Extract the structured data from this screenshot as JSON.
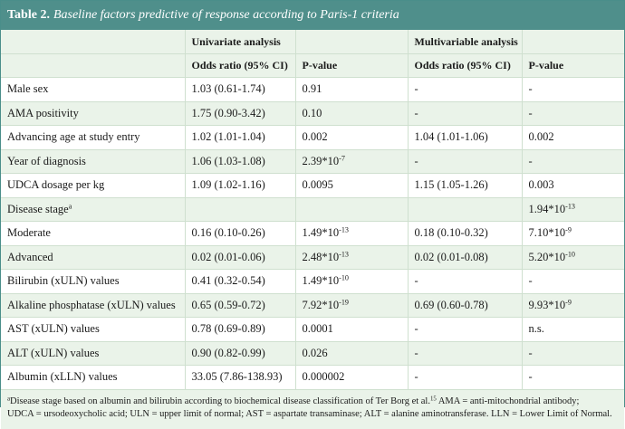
{
  "title": {
    "label": "Table 2.",
    "caption": "Baseline factors predictive of response according to Paris-1 criteria"
  },
  "group_headers": [
    "",
    "Univariate analysis",
    "",
    "Multivariable analysis",
    ""
  ],
  "sub_headers": [
    "",
    "Odds ratio (95% CI)",
    "P-value",
    "Odds ratio (95% CI)",
    "P-value"
  ],
  "rows": [
    {
      "factor": "Male sex",
      "uni_or": "1.03 (0.61-1.74)",
      "uni_p": "0.91",
      "uni_p_exp": "",
      "multi_or": "-",
      "multi_p": "-",
      "multi_p_exp": ""
    },
    {
      "factor": "AMA positivity",
      "uni_or": "1.75 (0.90-3.42)",
      "uni_p": "0.10",
      "uni_p_exp": "",
      "multi_or": "-",
      "multi_p": "-",
      "multi_p_exp": ""
    },
    {
      "factor": "Advancing age at study entry",
      "uni_or": "1.02 (1.01-1.04)",
      "uni_p": "0.002",
      "uni_p_exp": "",
      "multi_or": "1.04 (1.01-1.06)",
      "multi_p": "0.002",
      "multi_p_exp": ""
    },
    {
      "factor": "Year of diagnosis",
      "uni_or": "1.06 (1.03-1.08)",
      "uni_p": "2.39*10",
      "uni_p_exp": "-7",
      "multi_or": "-",
      "multi_p": "-",
      "multi_p_exp": ""
    },
    {
      "factor": "UDCA dosage per kg",
      "uni_or": "1.09 (1.02-1.16)",
      "uni_p": "0.0095",
      "uni_p_exp": "",
      "multi_or": "1.15 (1.05-1.26)",
      "multi_p": "0.003",
      "multi_p_exp": ""
    },
    {
      "factor": "Disease stage",
      "factor_sup": "a",
      "uni_or": "",
      "uni_p": "",
      "uni_p_exp": "",
      "multi_or": "",
      "multi_p": "1.94*10",
      "multi_p_exp": "-13"
    },
    {
      "factor": "Moderate",
      "uni_or": "0.16 (0.10-0.26)",
      "uni_p": "1.49*10",
      "uni_p_exp": "-13",
      "multi_or": "0.18 (0.10-0.32)",
      "multi_p": "7.10*10",
      "multi_p_exp": "-9"
    },
    {
      "factor": "Advanced",
      "uni_or": "0.02 (0.01-0.06)",
      "uni_p": "2.48*10",
      "uni_p_exp": "-13",
      "multi_or": "0.02 (0.01-0.08)",
      "multi_p": "5.20*10",
      "multi_p_exp": "-10"
    },
    {
      "factor": "Bilirubin (xULN) values",
      "uni_or": "0.41 (0.32-0.54)",
      "uni_p": "1.49*10",
      "uni_p_exp": "-10",
      "multi_or": "-",
      "multi_p": "-",
      "multi_p_exp": ""
    },
    {
      "factor": "Alkaline phosphatase (xULN) values",
      "uni_or": "0.65 (0.59-0.72)",
      "uni_p": "7.92*10",
      "uni_p_exp": "-19",
      "multi_or": "0.69 (0.60-0.78)",
      "multi_p": "9.93*10",
      "multi_p_exp": "-9"
    },
    {
      "factor": "AST (xULN) values",
      "uni_or": "0.78 (0.69-0.89)",
      "uni_p": "0.0001",
      "uni_p_exp": "",
      "multi_or": "-",
      "multi_p": "n.s.",
      "multi_p_exp": ""
    },
    {
      "factor": "ALT (xULN) values",
      "uni_or": "0.90 (0.82-0.99)",
      "uni_p": "0.026",
      "uni_p_exp": "",
      "multi_or": "-",
      "multi_p": "-",
      "multi_p_exp": ""
    },
    {
      "factor": "Albumin (xLLN) values",
      "uni_or": "33.05 (7.86-138.93)",
      "uni_p": "0.000002",
      "uni_p_exp": "",
      "multi_or": "-",
      "multi_p": "-",
      "multi_p_exp": ""
    }
  ],
  "footnote": {
    "marker": "a",
    "line1_a": "Disease stage based on albumin and bilirubin according to biochemical disease classification of Ter Borg et al.",
    "line1_ref": "15",
    "line1_b": " AMA = anti-mitochondrial antibody;",
    "line2": "UDCA = ursodeoxycholic acid; ULN = upper limit of normal; AST = aspartate transaminase; ALT = alanine aminotransferase. LLN = Lower Limit of Normal."
  },
  "colors": {
    "header_bg": "#4f8f8b",
    "stripe_bg": "#eaf3e9",
    "grid": "#cfe0cf"
  }
}
